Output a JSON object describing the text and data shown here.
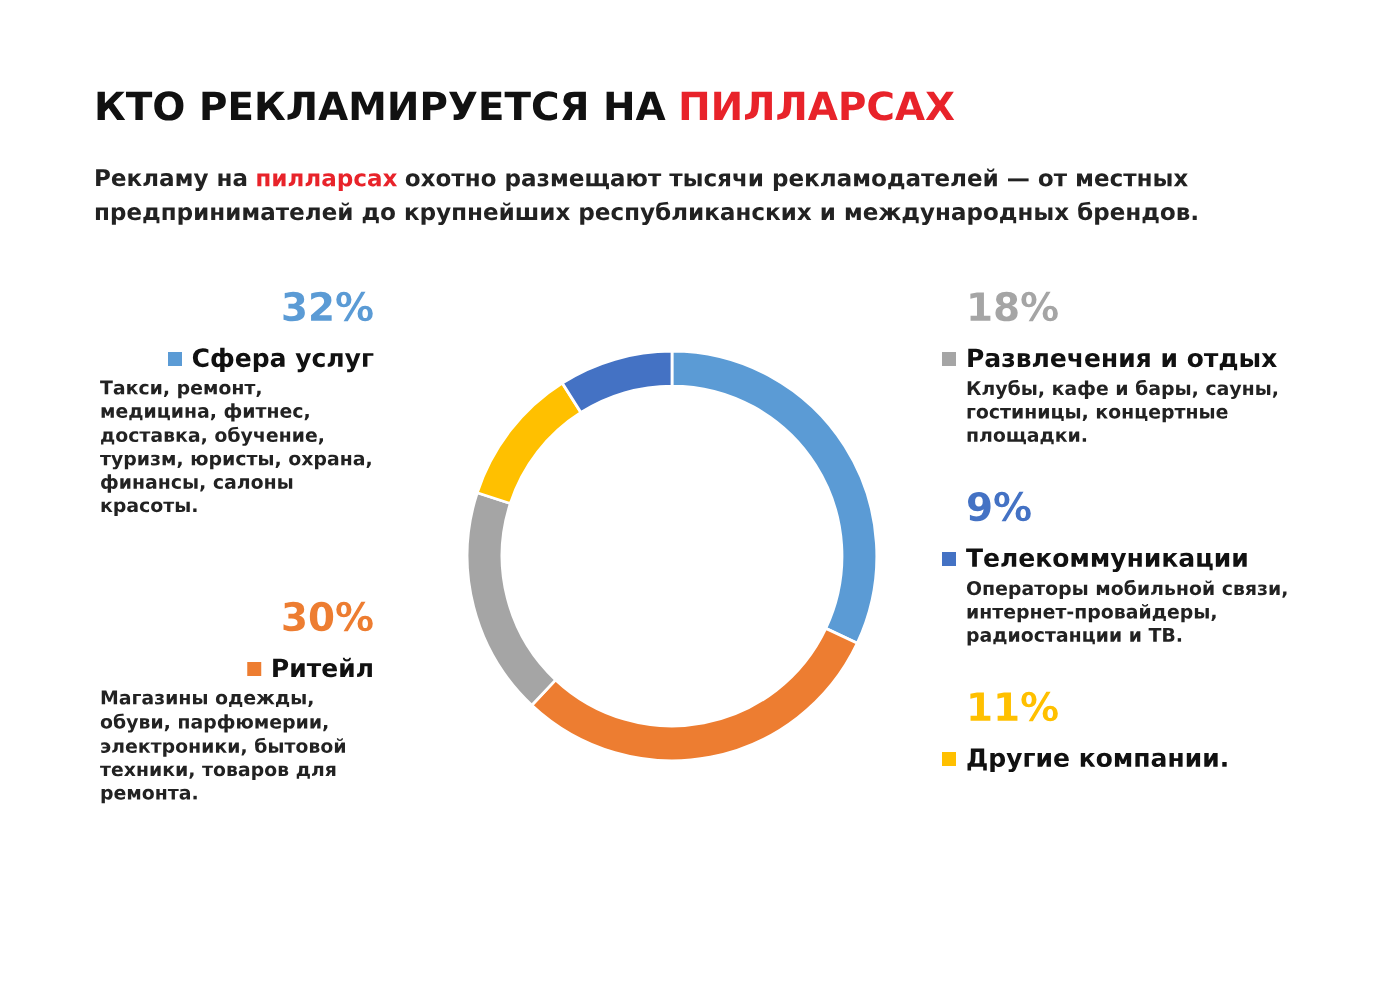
{
  "chart_data": {
    "type": "donut",
    "title": "КТО РЕКЛАМИРУЕТСЯ НА ПИЛЛАРСАХ",
    "subtitle": "Рекламу на пилларсах охотно размещают тысячи рекламодателей — от местных\nпредпринимателей до крупнейших республиканских и международных брендов.",
    "categories": [
      "Сфера услуг",
      "Ритейл",
      "Развлечения и отдых",
      "Другие компании.",
      "Телекоммуникации"
    ],
    "values": [
      32,
      30,
      18,
      11,
      9
    ],
    "value_labels": [
      "32%",
      "30%",
      "18%",
      "11%",
      "9%"
    ],
    "colors": [
      "#5b9bd5",
      "#ed7d31",
      "#a5a5a5",
      "#ffc000",
      "#4472c4"
    ],
    "annotations": [
      "Такси, ремонт,\nмедицина, фитнес,\nдоставка, обучение,\nтуризм, юристы, охрана,\nфинансы, салоны\nкрасоты.",
      "Магазины одежды,\nобуви, парфюмерии,\nэлектроники, бытовой\nтехники, товаров для\nремонта.",
      "Клубы, кафе и бары, сауны,\nгостиницы, концертные\nплощадки.",
      "Операторы мобильной связи,\nинтернет-провайдеры,\nрадиостанции и ТВ."
    ],
    "legend": "right"
  }
}
